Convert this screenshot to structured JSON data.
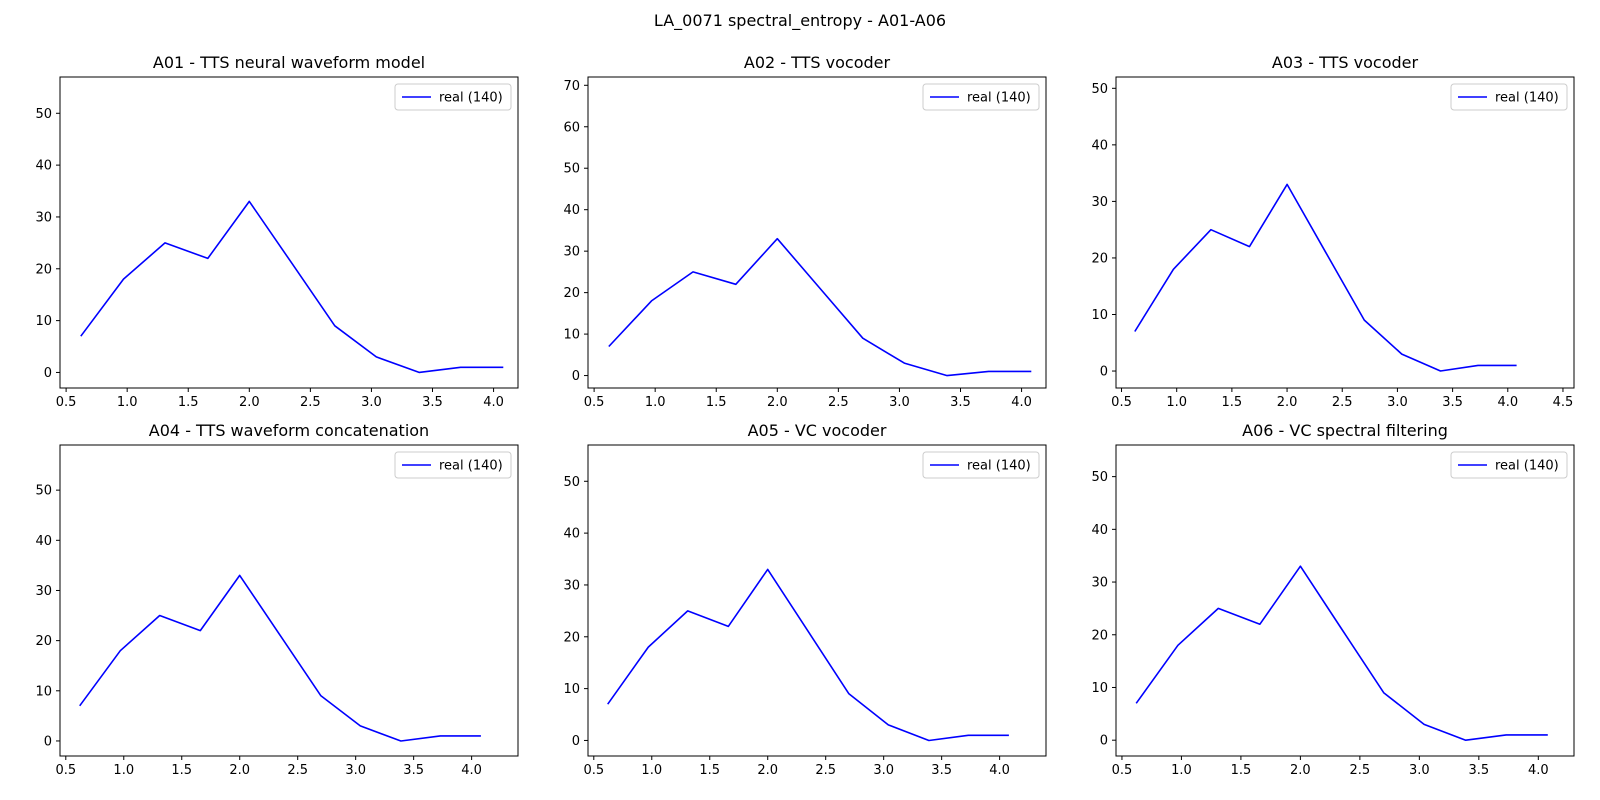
{
  "suptitle": "LA_0071 spectral_entropy - A01-A06",
  "colors": {
    "series": "#0000ff",
    "axes": "#000000",
    "legend_border": "#cccccc"
  },
  "chart_data": [
    {
      "type": "line",
      "title": "A01 - TTS neural waveform model",
      "xlim": [
        0.45,
        4.2
      ],
      "ylim": [
        -3,
        57
      ],
      "xticks": [
        "0.5",
        "1.0",
        "1.5",
        "2.0",
        "2.5",
        "3.0",
        "3.5",
        "4.0"
      ],
      "yticks": [
        "0",
        "10",
        "20",
        "30",
        "40",
        "50"
      ],
      "legend_position": "top-right",
      "series": [
        {
          "name": "real (140)",
          "x": [
            0.62,
            0.97,
            1.31,
            1.66,
            2.0,
            2.35,
            2.7,
            3.04,
            3.39,
            3.73,
            4.08
          ],
          "y": [
            7,
            18,
            25,
            22,
            33,
            21,
            9,
            3,
            0,
            1,
            1
          ]
        }
      ]
    },
    {
      "type": "line",
      "title": "A02 - TTS vocoder",
      "xlim": [
        0.45,
        4.2
      ],
      "ylim": [
        -3,
        72
      ],
      "xticks": [
        "0.5",
        "1.0",
        "1.5",
        "2.0",
        "2.5",
        "3.0",
        "3.5",
        "4.0"
      ],
      "yticks": [
        "0",
        "10",
        "20",
        "30",
        "40",
        "50",
        "60",
        "70"
      ],
      "legend_position": "top-right",
      "series": [
        {
          "name": "real (140)",
          "x": [
            0.62,
            0.97,
            1.31,
            1.66,
            2.0,
            2.35,
            2.7,
            3.04,
            3.39,
            3.73,
            4.08
          ],
          "y": [
            7,
            18,
            25,
            22,
            33,
            21,
            9,
            3,
            0,
            1,
            1
          ]
        }
      ]
    },
    {
      "type": "line",
      "title": "A03 - TTS vocoder",
      "xlim": [
        0.45,
        4.6
      ],
      "ylim": [
        -3,
        52
      ],
      "xticks": [
        "0.5",
        "1.0",
        "1.5",
        "2.0",
        "2.5",
        "3.0",
        "3.5",
        "4.0",
        "4.5"
      ],
      "yticks": [
        "0",
        "10",
        "20",
        "30",
        "40",
        "50"
      ],
      "legend_position": "top-right",
      "series": [
        {
          "name": "real (140)",
          "x": [
            0.62,
            0.97,
            1.31,
            1.66,
            2.0,
            2.35,
            2.7,
            3.04,
            3.39,
            3.73,
            4.08
          ],
          "y": [
            7,
            18,
            25,
            22,
            33,
            21,
            9,
            3,
            0,
            1,
            1
          ]
        }
      ]
    },
    {
      "type": "line",
      "title": "A04 - TTS waveform concatenation",
      "xlim": [
        0.45,
        4.4
      ],
      "ylim": [
        -3,
        59
      ],
      "xticks": [
        "0.5",
        "1.0",
        "1.5",
        "2.0",
        "2.5",
        "3.0",
        "3.5",
        "4.0"
      ],
      "yticks": [
        "0",
        "10",
        "20",
        "30",
        "40",
        "50"
      ],
      "legend_position": "top-right",
      "series": [
        {
          "name": "real (140)",
          "x": [
            0.62,
            0.97,
            1.31,
            1.66,
            2.0,
            2.35,
            2.7,
            3.04,
            3.39,
            3.73,
            4.08
          ],
          "y": [
            7,
            18,
            25,
            22,
            33,
            21,
            9,
            3,
            0,
            1,
            1
          ]
        }
      ]
    },
    {
      "type": "line",
      "title": "A05 - VC vocoder",
      "xlim": [
        0.45,
        4.4
      ],
      "ylim": [
        -3,
        57
      ],
      "xticks": [
        "0.5",
        "1.0",
        "1.5",
        "2.0",
        "2.5",
        "3.0",
        "3.5",
        "4.0"
      ],
      "yticks": [
        "0",
        "10",
        "20",
        "30",
        "40",
        "50"
      ],
      "legend_position": "top-right",
      "series": [
        {
          "name": "real (140)",
          "x": [
            0.62,
            0.97,
            1.31,
            1.66,
            2.0,
            2.35,
            2.7,
            3.04,
            3.39,
            3.73,
            4.08
          ],
          "y": [
            7,
            18,
            25,
            22,
            33,
            21,
            9,
            3,
            0,
            1,
            1
          ]
        }
      ]
    },
    {
      "type": "line",
      "title": "A06 - VC spectral filtering",
      "xlim": [
        0.45,
        4.3
      ],
      "ylim": [
        -3,
        56
      ],
      "xticks": [
        "0.5",
        "1.0",
        "1.5",
        "2.0",
        "2.5",
        "3.0",
        "3.5",
        "4.0"
      ],
      "yticks": [
        "0",
        "10",
        "20",
        "30",
        "40",
        "50"
      ],
      "legend_position": "top-right",
      "series": [
        {
          "name": "real (140)",
          "x": [
            0.62,
            0.97,
            1.31,
            1.66,
            2.0,
            2.35,
            2.7,
            3.04,
            3.39,
            3.73,
            4.08
          ],
          "y": [
            7,
            18,
            25,
            22,
            33,
            21,
            9,
            3,
            0,
            1,
            1
          ]
        }
      ]
    }
  ]
}
